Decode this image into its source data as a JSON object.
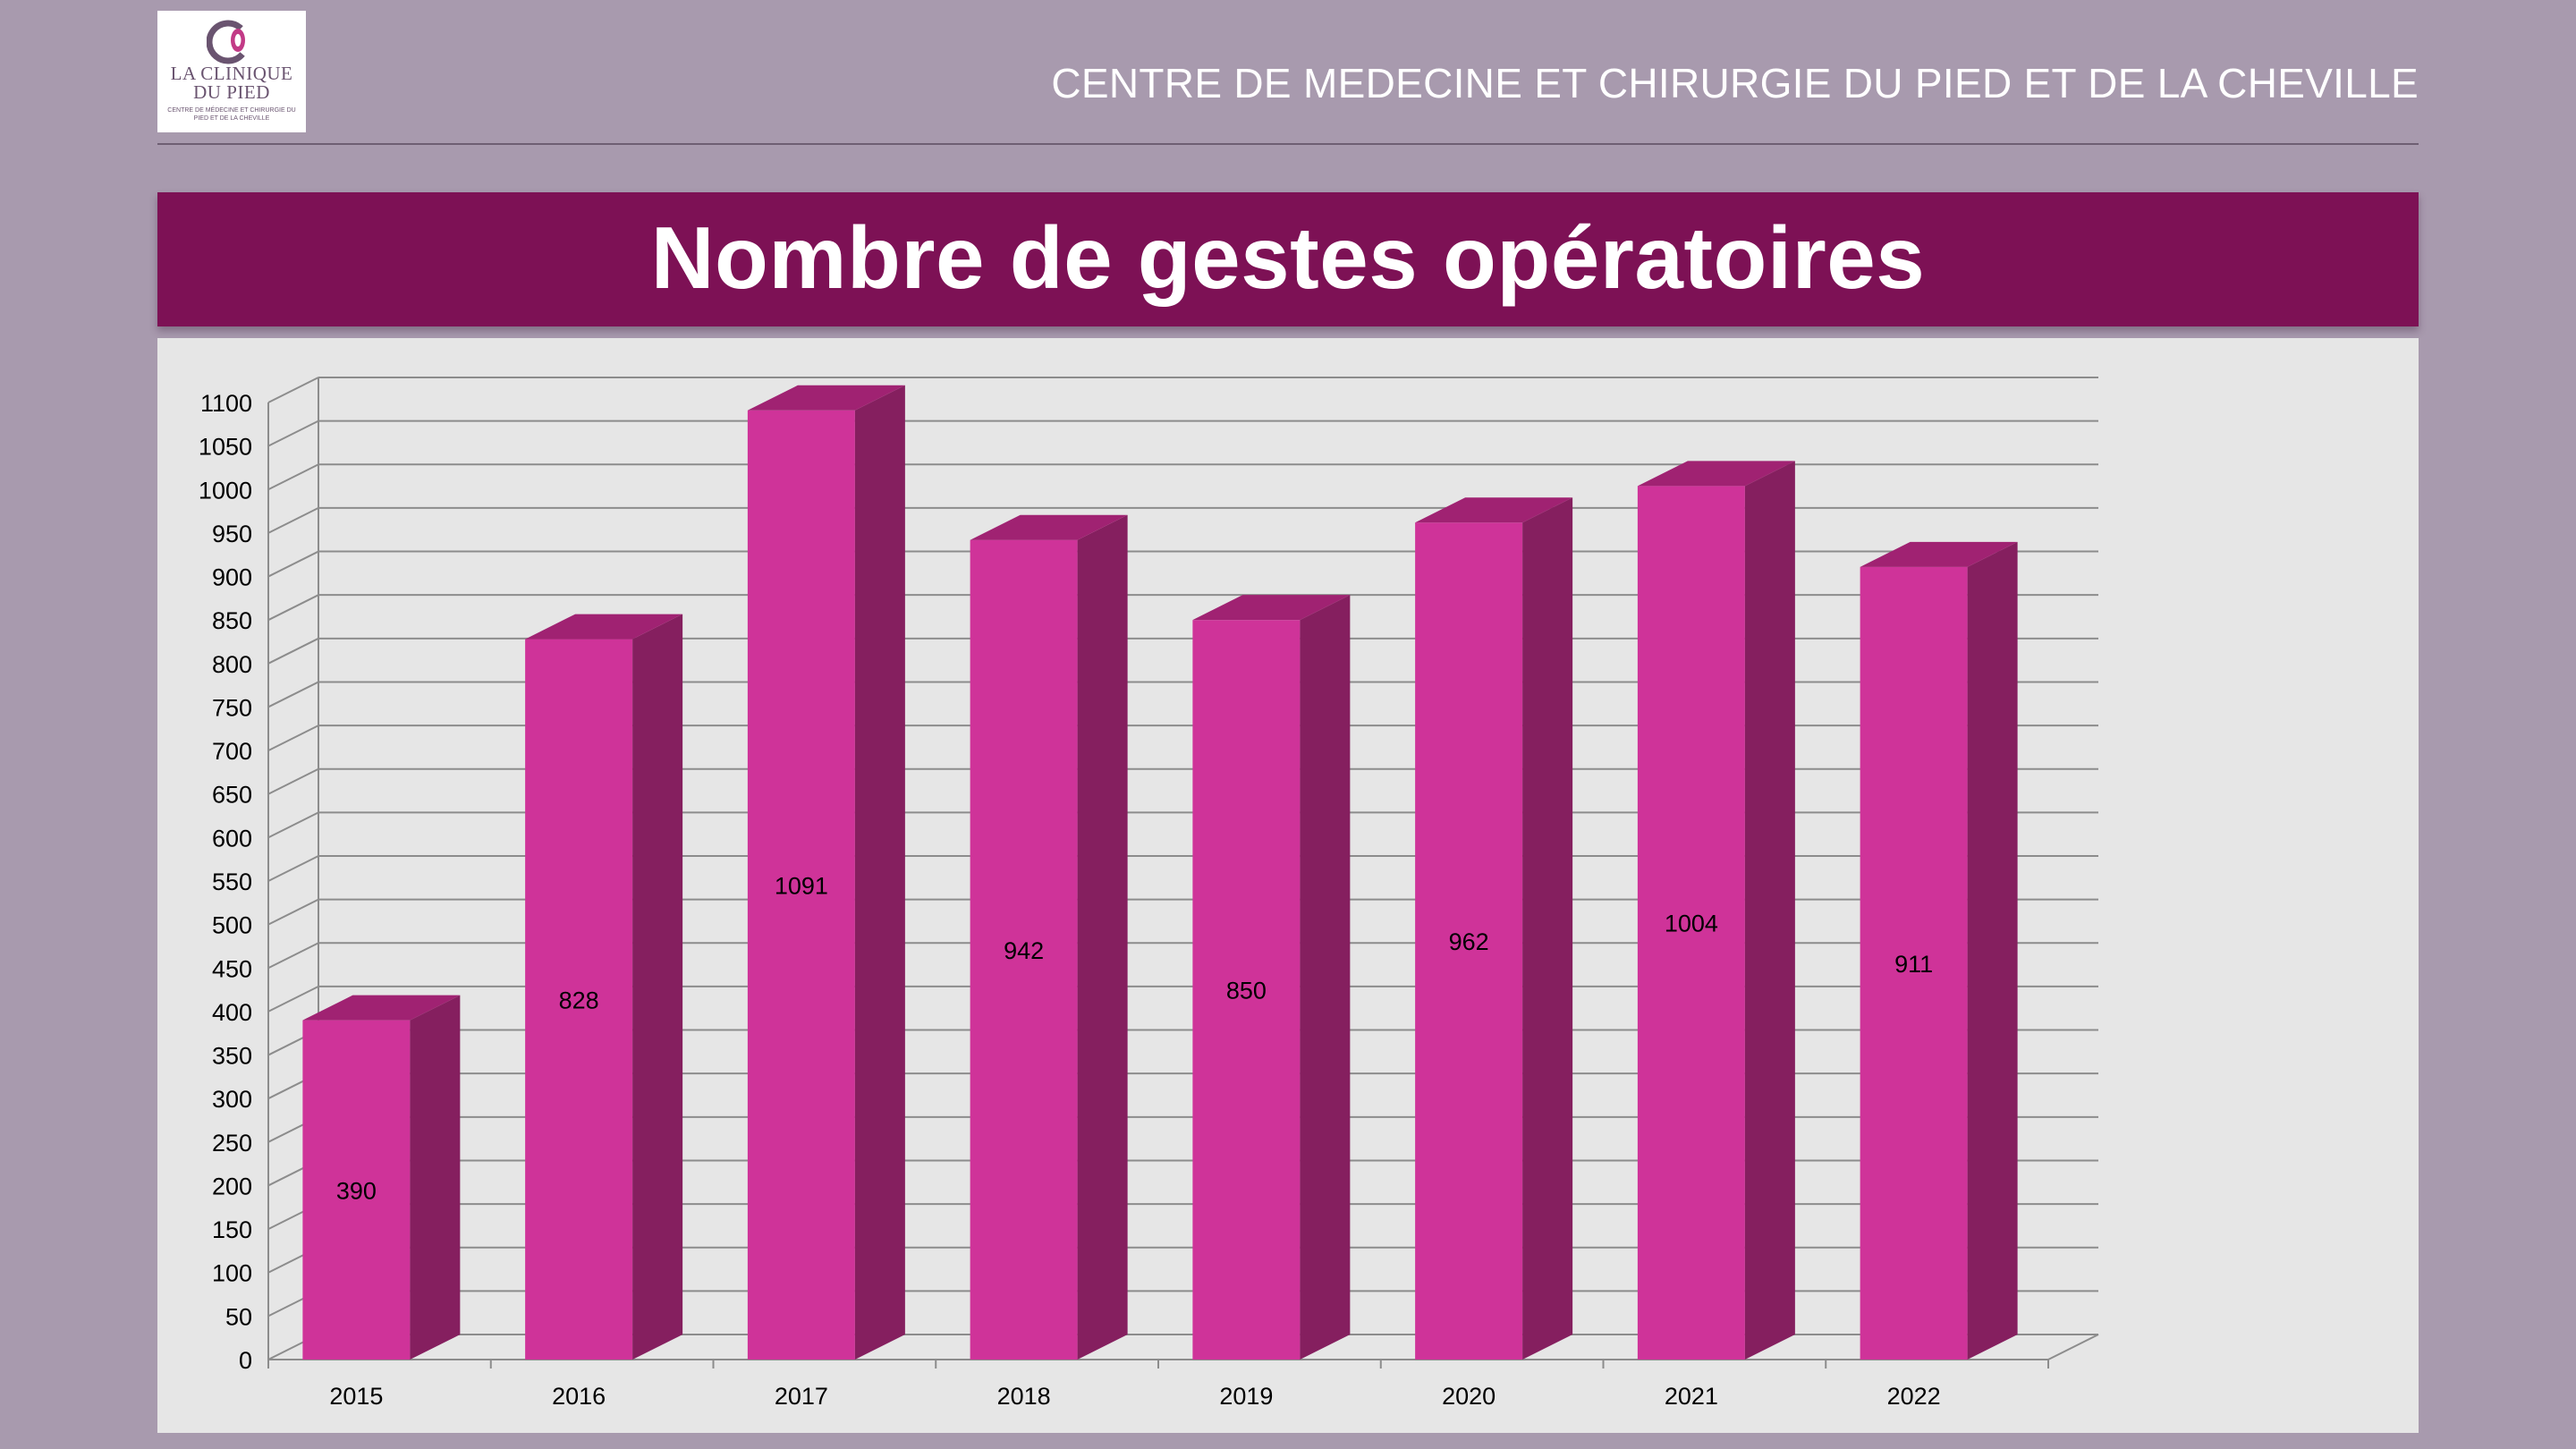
{
  "header": {
    "logo": {
      "line1": "LA CLINIQUE",
      "line2": "DU PIED",
      "line3": "CENTRE DE MÉDECINE ET CHIRURGIE DU PIED ET DE LA CHEVILLE"
    },
    "title": "CENTRE DE MEDECINE ET CHIRURGIE DU PIED ET DE LA CHEVILLE"
  },
  "colors": {
    "background": "#a89aae",
    "banner": "#7d1155",
    "bar_front": "#cf3399",
    "bar_side": "#851f5f",
    "bar_top": "#a02272",
    "panel": "#e6e6e6"
  },
  "chart_data": {
    "type": "bar",
    "title": "Nombre de gestes opératoires",
    "categories": [
      "2015",
      "2016",
      "2017",
      "2018",
      "2019",
      "2020",
      "2021",
      "2022"
    ],
    "values": [
      390,
      828,
      1091,
      942,
      850,
      962,
      1004,
      911
    ],
    "data_labels": [
      "390",
      "828",
      "1091",
      "942",
      "850",
      "962",
      "1004",
      "911"
    ],
    "ylim": [
      0,
      1100
    ],
    "ytick_step": 50,
    "yticks": [
      "0",
      "50",
      "100",
      "150",
      "200",
      "250",
      "300",
      "350",
      "400",
      "450",
      "500",
      "550",
      "600",
      "650",
      "700",
      "750",
      "800",
      "850",
      "900",
      "950",
      "1000",
      "1050",
      "1100"
    ],
    "xlabel": "",
    "ylabel": "",
    "grid": true,
    "style": "3d-column"
  }
}
